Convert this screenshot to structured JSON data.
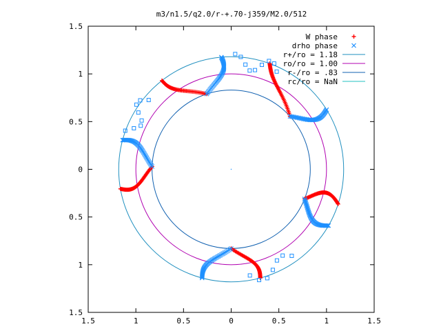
{
  "chart_data": {
    "type": "scatter",
    "title": "m3/n1.5/q2.0/r-+.70-j359/M2.0/512",
    "xlim": [
      -1.5,
      1.5
    ],
    "ylim": [
      -1.5,
      1.5
    ],
    "x_tick_labels": [
      "1.5",
      "1",
      "0.5",
      "0",
      "0.5",
      "1",
      "1.5"
    ],
    "y_tick_labels": [
      "1.5",
      "1",
      "0.5",
      "0",
      "0.5",
      "1",
      "1.5"
    ],
    "tick_values": [
      -1.5,
      -1,
      -0.5,
      0,
      0.5,
      1,
      1.5
    ],
    "grid": false,
    "legend_position": "top-right",
    "legend": [
      {
        "label": "W phase",
        "marker": "plus",
        "color": "#ff0000"
      },
      {
        "label": "drho phase",
        "marker": "cross",
        "color": "#1e90ff"
      },
      {
        "label": "r+/ro = 1.18",
        "marker": "line",
        "color": "#1f8fbf"
      },
      {
        "label": "ro/ro = 1.00",
        "marker": "line",
        "color": "#b000b0"
      },
      {
        "label": "r-/ro = .83",
        "marker": "line",
        "color": "#1060b0"
      },
      {
        "label": "rc/ro = NaN",
        "marker": "line",
        "color": "#20c0c0"
      }
    ],
    "circles": [
      {
        "name": "r+/ro",
        "radius": 1.18,
        "color": "#1f8fbf"
      },
      {
        "name": "ro/ro",
        "radius": 1.0,
        "color": "#b000b0"
      },
      {
        "name": "r-/ro",
        "radius": 0.83,
        "color": "#1060b0"
      }
    ],
    "series": [
      {
        "name": "W phase",
        "color": "#ff0000",
        "arms": [
          {
            "r_start": 0.83,
            "r_end": 1.18,
            "theta_start": 270,
            "theta_end": 285
          },
          {
            "r_start": 0.83,
            "r_end": 1.18,
            "theta_start": 338,
            "theta_end": 342
          },
          {
            "r_start": 0.83,
            "r_end": 1.18,
            "theta_start": 42,
            "theta_end": 70
          },
          {
            "r_start": 0.83,
            "r_end": 1.18,
            "theta_start": 108,
            "theta_end": 128
          },
          {
            "r_start": 0.83,
            "r_end": 1.18,
            "theta_start": 178,
            "theta_end": 190
          }
        ]
      },
      {
        "name": "drho phase",
        "color": "#1e90ff",
        "arms": [
          {
            "r_start": 0.83,
            "r_end": 1.18,
            "theta_start": 338,
            "theta_end": 330
          },
          {
            "r_start": 0.83,
            "r_end": 1.18,
            "theta_start": 42,
            "theta_end": 32
          },
          {
            "r_start": 0.83,
            "r_end": 1.18,
            "theta_start": 108,
            "theta_end": 95
          },
          {
            "r_start": 0.83,
            "r_end": 1.18,
            "theta_start": 178,
            "theta_end": 165
          },
          {
            "r_start": 0.83,
            "r_end": 1.18,
            "theta_start": 270,
            "theta_end": 255
          }
        ],
        "scattered": [
          {
            "r": 1.18,
            "theta_start": 280,
            "theta_end": 305,
            "n": 7
          },
          {
            "r": 1.18,
            "theta_start": 65,
            "theta_end": 88,
            "n": 9
          },
          {
            "r": 1.18,
            "theta_start": 140,
            "theta_end": 160,
            "n": 8
          }
        ]
      }
    ]
  }
}
